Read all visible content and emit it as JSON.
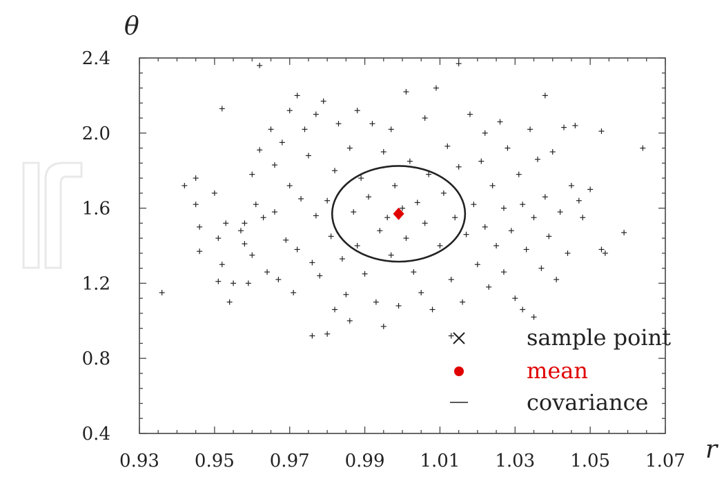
{
  "chart_data": {
    "type": "scatter",
    "title": "",
    "xlabel": "r",
    "ylabel": "θ",
    "xlim": [
      0.93,
      1.07
    ],
    "ylim": [
      0.4,
      2.4
    ],
    "xticks": [
      0.93,
      0.95,
      0.97,
      0.99,
      1.01,
      1.03,
      1.05,
      1.07
    ],
    "xtick_labels": [
      "0.93",
      "0.95",
      "0.97",
      "0.99",
      "1.01",
      "1.03",
      "1.05",
      "1.07"
    ],
    "yticks": [
      0.4,
      0.8,
      1.2,
      1.6,
      2.0,
      2.4
    ],
    "ytick_labels": [
      "0.4",
      "0.8",
      "1.2",
      "1.6",
      "2.0",
      "2.4"
    ],
    "grid": false,
    "legend_position": "bottom-right",
    "legend": [
      {
        "label": "sample point",
        "marker": "x",
        "color": "#222222"
      },
      {
        "label": "mean",
        "marker": "dot",
        "color": "#e00000"
      },
      {
        "label": "covariance",
        "marker": "line",
        "color": "#222222"
      }
    ],
    "series": [
      {
        "name": "sample point",
        "marker": "+",
        "color": "#222222",
        "points": [
          [
            0.936,
            1.15
          ],
          [
            0.942,
            1.72
          ],
          [
            0.945,
            1.62
          ],
          [
            0.945,
            1.76
          ],
          [
            0.946,
            1.5
          ],
          [
            0.946,
            1.37
          ],
          [
            0.95,
            1.68
          ],
          [
            0.951,
            1.44
          ],
          [
            0.951,
            1.21
          ],
          [
            0.952,
            1.3
          ],
          [
            0.952,
            2.13
          ],
          [
            0.953,
            1.52
          ],
          [
            0.954,
            1.1
          ],
          [
            0.955,
            1.2
          ],
          [
            0.957,
            1.48
          ],
          [
            0.958,
            1.52
          ],
          [
            0.958,
            1.41
          ],
          [
            0.959,
            1.2
          ],
          [
            0.96,
            1.78
          ],
          [
            0.96,
            1.35
          ],
          [
            0.961,
            1.62
          ],
          [
            0.962,
            1.91
          ],
          [
            0.962,
            2.36
          ],
          [
            0.963,
            1.55
          ],
          [
            0.964,
            1.26
          ],
          [
            0.965,
            2.02
          ],
          [
            0.966,
            1.83
          ],
          [
            0.966,
            1.58
          ],
          [
            0.967,
            1.22
          ],
          [
            0.968,
            1.95
          ],
          [
            0.969,
            1.43
          ],
          [
            0.97,
            2.12
          ],
          [
            0.97,
            1.72
          ],
          [
            0.971,
            1.15
          ],
          [
            0.972,
            2.2
          ],
          [
            0.972,
            1.38
          ],
          [
            0.973,
            1.65
          ],
          [
            0.974,
            2.02
          ],
          [
            0.975,
            1.88
          ],
          [
            0.976,
            0.92
          ],
          [
            0.976,
            1.31
          ],
          [
            0.977,
            2.1
          ],
          [
            0.977,
            1.56
          ],
          [
            0.978,
            1.24
          ],
          [
            0.979,
            2.17
          ],
          [
            0.98,
            0.93
          ],
          [
            0.98,
            1.64
          ],
          [
            0.981,
            1.45
          ],
          [
            0.982,
            1.06
          ],
          [
            0.982,
            1.8
          ],
          [
            0.983,
            2.05
          ],
          [
            0.984,
            1.33
          ],
          [
            0.985,
            1.14
          ],
          [
            0.986,
            1.0
          ],
          [
            0.986,
            1.92
          ],
          [
            0.987,
            1.58
          ],
          [
            0.988,
            2.12
          ],
          [
            0.988,
            1.4
          ],
          [
            0.989,
            1.76
          ],
          [
            0.99,
            1.25
          ],
          [
            0.991,
            1.66
          ],
          [
            0.992,
            2.05
          ],
          [
            0.993,
            1.1
          ],
          [
            0.994,
            1.48
          ],
          [
            0.995,
            0.97
          ],
          [
            0.995,
            1.9
          ],
          [
            0.996,
            1.55
          ],
          [
            0.997,
            1.35
          ],
          [
            0.997,
            2.02
          ],
          [
            0.998,
            1.72
          ],
          [
            0.999,
            1.08
          ],
          [
            1.0,
            1.6
          ],
          [
            1.001,
            1.44
          ],
          [
            1.001,
            2.22
          ],
          [
            1.002,
            1.85
          ],
          [
            1.003,
            1.26
          ],
          [
            1.004,
            1.63
          ],
          [
            1.005,
            1.15
          ],
          [
            1.006,
            2.08
          ],
          [
            1.006,
            1.52
          ],
          [
            1.007,
            1.78
          ],
          [
            1.008,
            1.06
          ],
          [
            1.009,
            2.24
          ],
          [
            1.01,
            1.4
          ],
          [
            1.011,
            1.68
          ],
          [
            1.012,
            1.93
          ],
          [
            1.013,
            1.22
          ],
          [
            1.013,
            0.92
          ],
          [
            1.014,
            1.55
          ],
          [
            1.015,
            2.37
          ],
          [
            1.015,
            1.82
          ],
          [
            1.016,
            1.1
          ],
          [
            1.017,
            1.46
          ],
          [
            1.018,
            2.1
          ],
          [
            1.019,
            1.62
          ],
          [
            1.02,
            1.3
          ],
          [
            1.021,
            1.85
          ],
          [
            1.022,
            2.0
          ],
          [
            1.022,
            1.5
          ],
          [
            1.023,
            1.18
          ],
          [
            1.024,
            1.72
          ],
          [
            1.025,
            1.4
          ],
          [
            1.026,
            2.06
          ],
          [
            1.027,
            1.6
          ],
          [
            1.027,
            1.26
          ],
          [
            1.028,
            1.92
          ],
          [
            1.029,
            1.48
          ],
          [
            1.03,
            1.12
          ],
          [
            1.031,
            1.78
          ],
          [
            1.032,
            1.06
          ],
          [
            1.032,
            1.62
          ],
          [
            1.033,
            1.38
          ],
          [
            1.034,
            2.02
          ],
          [
            1.035,
            1.02
          ],
          [
            1.035,
            1.55
          ],
          [
            1.036,
            1.86
          ],
          [
            1.037,
            1.28
          ],
          [
            1.038,
            2.2
          ],
          [
            1.038,
            1.66
          ],
          [
            1.039,
            1.45
          ],
          [
            1.04,
            1.9
          ],
          [
            1.041,
            1.22
          ],
          [
            1.042,
            1.58
          ],
          [
            1.043,
            2.03
          ],
          [
            1.044,
            1.36
          ],
          [
            1.045,
            1.72
          ],
          [
            1.046,
            2.04
          ],
          [
            1.047,
            1.64
          ],
          [
            1.048,
            1.55
          ],
          [
            1.05,
            1.7
          ],
          [
            1.053,
            2.01
          ],
          [
            1.053,
            1.38
          ],
          [
            1.054,
            1.36
          ],
          [
            1.059,
            1.47
          ],
          [
            1.064,
            1.92
          ]
        ]
      },
      {
        "name": "mean",
        "marker": "dot",
        "color": "#e00000",
        "points": [
          [
            0.999,
            1.57
          ]
        ]
      }
    ],
    "covariance_ellipse": {
      "center": [
        0.999,
        1.57
      ],
      "radius_r": 0.0177,
      "radius_theta": 0.255,
      "color": "#222222"
    }
  }
}
